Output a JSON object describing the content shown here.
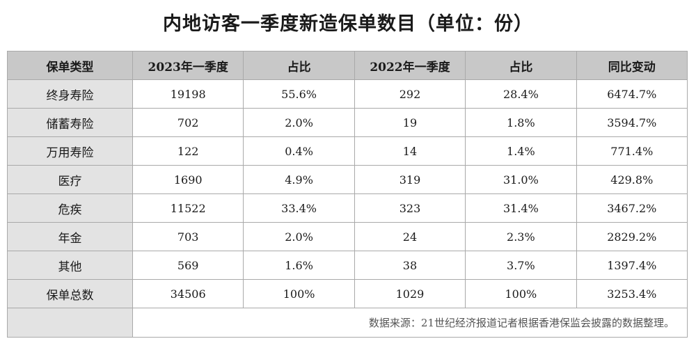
{
  "title": "内地访客一季度新造保单数目（单位：份）",
  "chart_data": {
    "type": "table",
    "columns": [
      "保单类型",
      "2023年一季度",
      "占比",
      "2022年一季度",
      "占比",
      "同比变动"
    ],
    "rows": [
      [
        "终身寿险",
        "19198",
        "55.6%",
        "292",
        "28.4%",
        "6474.7%"
      ],
      [
        "储蓄寿险",
        "702",
        "2.0%",
        "19",
        "1.8%",
        "3594.7%"
      ],
      [
        "万用寿险",
        "122",
        "0.4%",
        "14",
        "1.4%",
        "771.4%"
      ],
      [
        "医疗",
        "1690",
        "4.9%",
        "319",
        "31.0%",
        "429.8%"
      ],
      [
        "危疾",
        "11522",
        "33.4%",
        "323",
        "31.4%",
        "3467.2%"
      ],
      [
        "年金",
        "703",
        "2.0%",
        "24",
        "2.3%",
        "2829.2%"
      ],
      [
        "其他",
        "569",
        "1.6%",
        "38",
        "3.7%",
        "1397.4%"
      ],
      [
        "保单总数",
        "34506",
        "100%",
        "1029",
        "100%",
        "3253.4%"
      ]
    ],
    "source_note": "数据来源：21世纪经济报道记者根据香港保监会披露的数据整理。"
  }
}
